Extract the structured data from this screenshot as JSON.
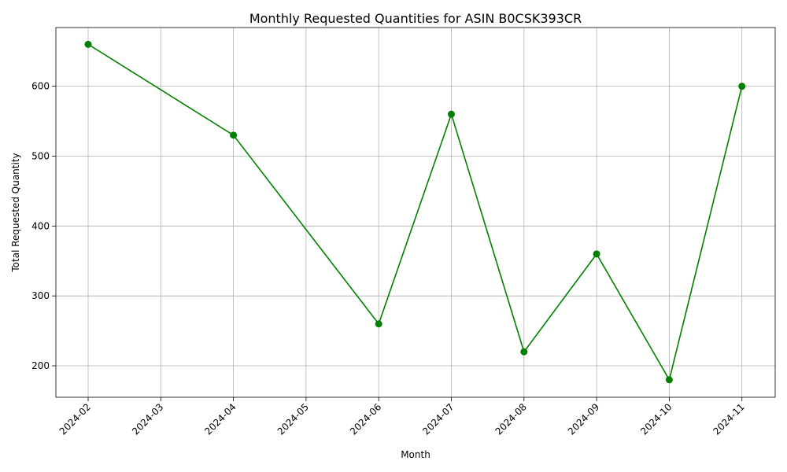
{
  "chart_data": {
    "type": "line",
    "title": "Monthly Requested Quantities for ASIN B0CSK393CR",
    "xlabel": "Month",
    "ylabel": "Total Requested Quantity",
    "x_ticks": [
      "2024-02",
      "2024-03",
      "2024-04",
      "2024-05",
      "2024-06",
      "2024-07",
      "2024-08",
      "2024-09",
      "2024-10",
      "2024-11"
    ],
    "y_ticks": [
      200,
      300,
      400,
      500,
      600
    ],
    "ylim": [
      155,
      684
    ],
    "grid": true,
    "series": [
      {
        "color": "#008000",
        "marker": "circle",
        "points": [
          {
            "x": "2024-02",
            "y": 660
          },
          {
            "x": "2024-04",
            "y": 530
          },
          {
            "x": "2024-06",
            "y": 260
          },
          {
            "x": "2024-07",
            "y": 560
          },
          {
            "x": "2024-08",
            "y": 220
          },
          {
            "x": "2024-09",
            "y": 360
          },
          {
            "x": "2024-10",
            "y": 180
          },
          {
            "x": "2024-11",
            "y": 600
          }
        ]
      }
    ]
  }
}
